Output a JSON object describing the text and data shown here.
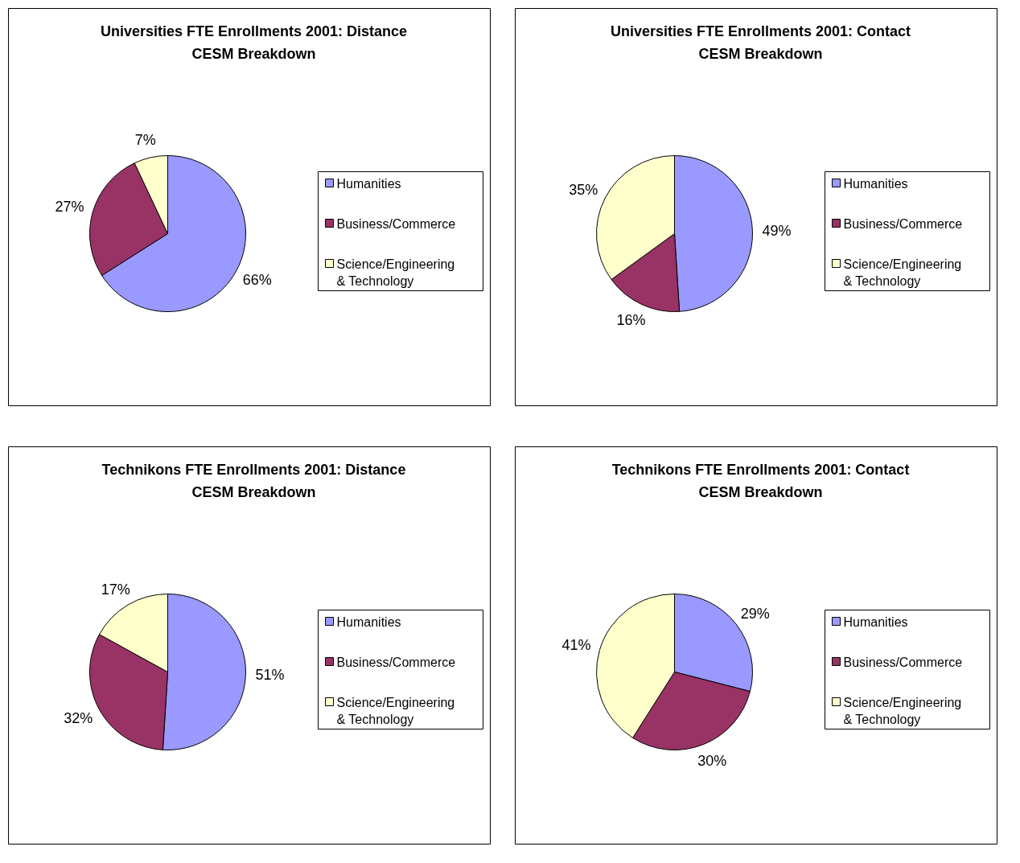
{
  "chart_data": [
    {
      "type": "pie",
      "title": "Universities FTE Enrollments 2001: Distance CESM Breakdown",
      "categories": [
        "Humanities",
        "Business/Commerce",
        "Science/Engineering & Technology"
      ],
      "values": [
        66,
        27,
        7
      ],
      "value_labels": [
        "66%",
        "27%",
        "7%"
      ],
      "colors": [
        "#9999ff",
        "#993366",
        "#ffffcc"
      ],
      "legend": "right"
    },
    {
      "type": "pie",
      "title": "Universities FTE Enrollments 2001: Contact CESM Breakdown",
      "categories": [
        "Humanities",
        "Business/Commerce",
        "Science/Engineering & Technology"
      ],
      "values": [
        49,
        16,
        35
      ],
      "value_labels": [
        "49%",
        "16%",
        "35%"
      ],
      "colors": [
        "#9999ff",
        "#993366",
        "#ffffcc"
      ],
      "legend": "right"
    },
    {
      "type": "pie",
      "title": "Technikons FTE Enrollments 2001: Distance CESM Breakdown",
      "categories": [
        "Humanities",
        "Business/Commerce",
        "Science/Engineering & Technology"
      ],
      "values": [
        51,
        32,
        17
      ],
      "value_labels": [
        "51%",
        "32%",
        "17%"
      ],
      "colors": [
        "#9999ff",
        "#993366",
        "#ffffcc"
      ],
      "legend": "right"
    },
    {
      "type": "pie",
      "title": "Technikons FTE Enrollments 2001: Contact CESM Breakdown",
      "categories": [
        "Humanities",
        "Business/Commerce",
        "Science/Engineering & Technology"
      ],
      "values": [
        29,
        30,
        41
      ],
      "value_labels": [
        "29%",
        "30%",
        "41%"
      ],
      "colors": [
        "#9999ff",
        "#993366",
        "#ffffcc"
      ],
      "legend": "right"
    }
  ]
}
